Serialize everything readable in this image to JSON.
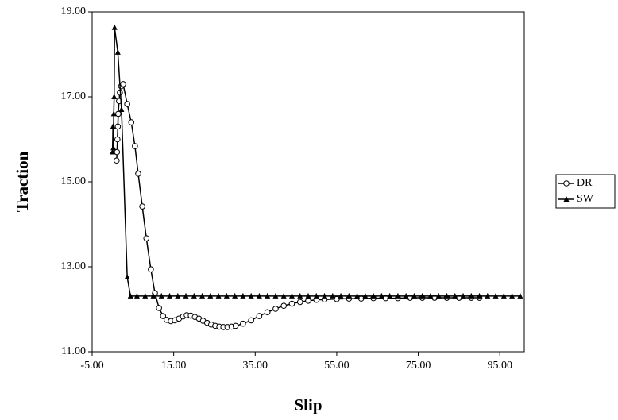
{
  "chart_data": {
    "type": "line",
    "x_label": "Slip",
    "y_label": "Traction",
    "xlim": [
      -5,
      101
    ],
    "ylim": [
      11,
      19
    ],
    "xticks": [
      {
        "value": -5,
        "label": "-5.00"
      },
      {
        "value": 15,
        "label": "15.00"
      },
      {
        "value": 35,
        "label": "35.00"
      },
      {
        "value": 55,
        "label": "55.00"
      },
      {
        "value": 75,
        "label": "75.00"
      },
      {
        "value": 95,
        "label": "95.00"
      }
    ],
    "yticks": [
      {
        "value": 11,
        "label": "11.00"
      },
      {
        "value": 13,
        "label": "13.00"
      },
      {
        "value": 15,
        "label": "15.00"
      },
      {
        "value": 17,
        "label": "17.00"
      },
      {
        "value": 19,
        "label": "19.00"
      }
    ],
    "grid": false,
    "legend": "right",
    "series": [
      {
        "name": "DR",
        "color": "#000000",
        "marker": "circle",
        "x": [
          1.0,
          1.1,
          1.2,
          1.3,
          1.4,
          1.6,
          1.8,
          2.1,
          2.6,
          3.6,
          4.6,
          5.5,
          6.3,
          7.3,
          8.3,
          9.4,
          10.4,
          11.4,
          12.4,
          13.3,
          14.3,
          15.3,
          16.3,
          17.3,
          18.2,
          19.2,
          20.2,
          21.2,
          22.2,
          23.2,
          24.2,
          25.2,
          26.2,
          27.2,
          28.2,
          29.2,
          30.2,
          32,
          34,
          36,
          38,
          40,
          42,
          44,
          46,
          48,
          50,
          52,
          55,
          58,
          61,
          64,
          67,
          70,
          73,
          76,
          79,
          82,
          85,
          88,
          90
        ],
        "values": [
          15.5,
          15.7,
          16.0,
          16.3,
          16.6,
          16.9,
          17.1,
          17.25,
          17.3,
          16.83,
          16.4,
          15.84,
          15.19,
          14.42,
          13.67,
          12.94,
          12.38,
          12.03,
          11.84,
          11.75,
          11.72,
          11.74,
          11.78,
          11.83,
          11.86,
          11.85,
          11.82,
          11.78,
          11.73,
          11.68,
          11.64,
          11.61,
          11.59,
          11.58,
          11.58,
          11.59,
          11.61,
          11.66,
          11.74,
          11.84,
          11.93,
          12.01,
          12.08,
          12.13,
          12.17,
          12.2,
          12.22,
          12.23,
          12.24,
          12.25,
          12.25,
          12.26,
          12.26,
          12.26,
          12.27,
          12.27,
          12.27,
          12.27,
          12.27,
          12.27,
          12.27
        ]
      },
      {
        "name": "SW",
        "color": "#000000",
        "marker": "triangle",
        "x": [
          0,
          0.1,
          0.2,
          0.3,
          0.4,
          0.5,
          1.3,
          2.2,
          3.6,
          4.4,
          6,
          8,
          10,
          12,
          14,
          16,
          18,
          20,
          22,
          24,
          26,
          28,
          30,
          32,
          34,
          36,
          38,
          40,
          42,
          44,
          46,
          48,
          50,
          52,
          54,
          56,
          58,
          60,
          62,
          64,
          66,
          68,
          70,
          72,
          74,
          76,
          78,
          80,
          82,
          84,
          86,
          88,
          90,
          92,
          94,
          96,
          98,
          100
        ],
        "values": [
          15.7,
          16.3,
          15.8,
          16.6,
          17.0,
          18.63,
          18.05,
          16.7,
          12.76,
          12.31,
          12.31,
          12.31,
          12.31,
          12.31,
          12.31,
          12.31,
          12.31,
          12.31,
          12.31,
          12.31,
          12.31,
          12.31,
          12.31,
          12.31,
          12.31,
          12.31,
          12.31,
          12.31,
          12.31,
          12.31,
          12.31,
          12.31,
          12.31,
          12.31,
          12.31,
          12.31,
          12.31,
          12.31,
          12.31,
          12.31,
          12.31,
          12.31,
          12.31,
          12.31,
          12.31,
          12.31,
          12.31,
          12.31,
          12.31,
          12.31,
          12.31,
          12.31,
          12.31,
          12.31,
          12.31,
          12.31,
          12.31,
          12.31
        ]
      }
    ]
  }
}
